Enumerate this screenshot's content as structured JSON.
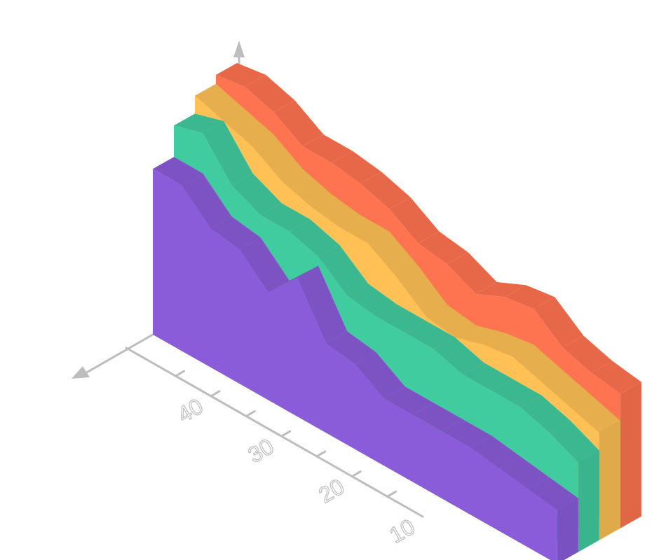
{
  "chart_data": {
    "type": "area",
    "subtype": "3d-isometric-stacked-ribbons",
    "title": "",
    "xlabel": "",
    "ylabel": "",
    "x_ticks": [
      "10",
      "20",
      "30",
      "40"
    ],
    "x": [
      50,
      47,
      44,
      41,
      38,
      35,
      32,
      29,
      26,
      23,
      20,
      17,
      14,
      11,
      8
    ],
    "grid": false,
    "legend": "none",
    "series": [
      {
        "color": "#8b5cda",
        "values": [
          37,
          37,
          31,
          30,
          24,
          31,
          20,
          19,
          15,
          15,
          15,
          15,
          14,
          13,
          12
        ]
      },
      {
        "color": "#41cc9f",
        "values": [
          44,
          46,
          38,
          35,
          35,
          33,
          28,
          27,
          27,
          27,
          25,
          25,
          25,
          23,
          20
        ]
      },
      {
        "color": "#ffc155",
        "values": [
          48,
          46,
          44,
          40,
          38,
          37,
          37,
          33,
          28,
          27,
          29,
          30,
          28,
          26,
          24
        ]
      },
      {
        "color": "#ff7450",
        "values": [
          50,
          51,
          49,
          45,
          45,
          44,
          42,
          38,
          37,
          34,
          37,
          38,
          33,
          31,
          30
        ]
      }
    ]
  }
}
